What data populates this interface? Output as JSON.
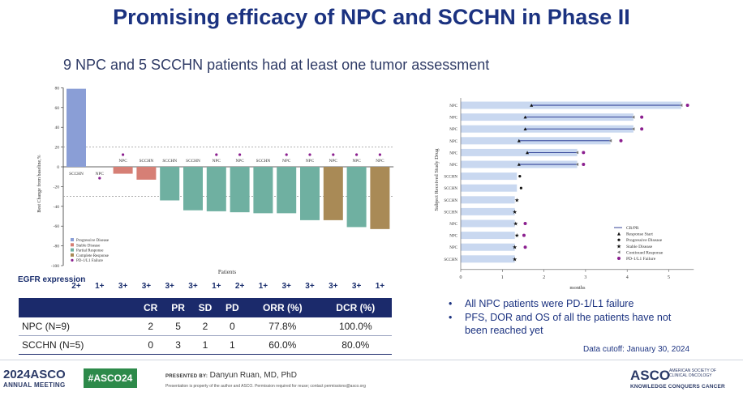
{
  "title": "Promising efficacy of NPC and SCCHN in Phase II",
  "subtitle": "9 NPC and 5 SCCHN patients had at least  one tumor assessment",
  "chart_data": [
    {
      "type": "bar",
      "title": "",
      "xlabel": "Patients",
      "ylabel": "Best Change from baseline,%",
      "ylim": [
        -100,
        80
      ],
      "yticks": [
        80,
        60,
        40,
        20,
        0,
        -20,
        -40,
        -60,
        -80,
        -100
      ],
      "reference_lines": [
        20,
        -30
      ],
      "categories": [
        "SCCHN",
        "NPC",
        "NPC",
        "SCCHN",
        "SCCHN",
        "SCCHN",
        "NPC",
        "NPC",
        "SCCHN",
        "NPC",
        "NPC",
        "NPC",
        "NPC",
        "NPC"
      ],
      "values": [
        79,
        0,
        -7,
        -13,
        -34,
        -44,
        -45,
        -46,
        -47,
        -47,
        -54,
        -54,
        -61,
        -63
      ],
      "response": [
        "Progressive Disease",
        "Stable Disease",
        "Stable Disease",
        "Stable Disease",
        "Partial Response",
        "Partial Response",
        "Partial Response",
        "Partial Response",
        "Partial Response",
        "Partial Response",
        "Partial Response",
        "Complete Response",
        "Partial Response",
        "Complete Response"
      ],
      "pd1_failure": [
        false,
        true,
        true,
        false,
        false,
        false,
        true,
        true,
        false,
        true,
        true,
        true,
        true,
        true
      ],
      "egfr_expression": [
        "2+",
        "1+",
        "3+",
        "3+",
        "3+",
        "3+",
        "1+",
        "2+",
        "1+",
        "3+",
        "3+",
        "3+",
        "3+",
        "1+"
      ],
      "legend": [
        "Progressive Disease",
        "Stable Disease",
        "Partial Response",
        "Complete Response",
        "PD-1/L1 Failure"
      ],
      "legend_position": "bottom-left",
      "colors": {
        "Progressive Disease": "#8a9ed6",
        "Stable Disease": "#d67f75",
        "Partial Response": "#6fb0a1",
        "Complete Response": "#a98a56",
        "PD-1/L1 Failure": "#8b1f8f"
      }
    },
    {
      "type": "swimmer",
      "title": "",
      "xlabel": "months",
      "ylabel": "Subject Received Study Drug",
      "xlim": [
        0,
        6
      ],
      "xticks": [
        0,
        1,
        2,
        3,
        4,
        5
      ],
      "categories": [
        "NPC",
        "NPC",
        "NPC",
        "NPC",
        "NPC",
        "NPC",
        "SCCHN",
        "SCCHN",
        "SCCHN",
        "SCCHN",
        "NPC",
        "NPC",
        "NPC",
        "SCCHN"
      ],
      "duration": [
        5.3,
        4.15,
        4.15,
        3.6,
        2.8,
        2.8,
        1.35,
        1.35,
        1.3,
        1.3,
        1.3,
        1.3,
        1.3,
        1.3
      ],
      "response_start": [
        1.7,
        1.55,
        1.55,
        1.4,
        1.6,
        1.4,
        null,
        null,
        null,
        null,
        null,
        null,
        null,
        null
      ],
      "response_end": [
        5.3,
        4.15,
        4.15,
        3.6,
        2.8,
        2.8,
        null,
        null,
        null,
        null,
        null,
        null,
        null,
        null
      ],
      "progressive_disease": [
        null,
        null,
        null,
        null,
        null,
        null,
        1.42,
        1.45,
        null,
        null,
        null,
        null,
        null,
        null
      ],
      "stable_disease": [
        null,
        null,
        null,
        null,
        null,
        null,
        null,
        null,
        1.35,
        1.3,
        1.32,
        1.35,
        1.3,
        1.3
      ],
      "continued_response": [
        5.3,
        4.15,
        4.15,
        3.6,
        2.8,
        2.8,
        null,
        null,
        null,
        null,
        null,
        null,
        null,
        null
      ],
      "pd1_failure": [
        5.45,
        4.35,
        4.35,
        3.85,
        2.95,
        2.95,
        null,
        null,
        null,
        null,
        1.55,
        1.52,
        1.55,
        null
      ],
      "legend": [
        "CR/PR",
        "Response Start",
        "Progressive Disease",
        "Stable Disease",
        "Continued Response",
        "PD-1/L1 Failure"
      ],
      "legend_position": "bottom-right",
      "colors": {
        "bar": "#c9d8f0",
        "line": "#1d2e8c",
        "pd1": "#8b1f8f"
      }
    }
  ],
  "egfr": {
    "label": "EGFR expression"
  },
  "table": {
    "headers": [
      "",
      "CR",
      "PR",
      "SD",
      "PD",
      "ORR (%)",
      "DCR (%)"
    ],
    "rows": [
      [
        "NPC  (N=9)",
        "2",
        "5",
        "2",
        "0",
        "77.8%",
        "100.0%"
      ],
      [
        "SCCHN  (N=5)",
        "0",
        "3",
        "1",
        "1",
        "60.0%",
        "80.0%"
      ]
    ]
  },
  "bullets": [
    "All NPC patients were PD-1/L1 failure",
    "PFS, DOR and OS of all the patients have not been reached yet"
  ],
  "data_cutoff": "Data cutoff: January 30, 2024",
  "footer": {
    "year": "2024",
    "asco": "ASCO",
    "annual_meeting": "ANNUAL MEETING",
    "hashtag": "#ASCO24",
    "presented_by": "PRESENTED BY:",
    "presenter": "Danyun Ruan, MD, PhD",
    "disclaimer": "Presentation is property of the author and ASCO. Permission required for reuse; contact permissions@asco.org",
    "logo": "ASCO",
    "society": "AMERICAN SOCIETY OF CLINICAL ONCOLOGY",
    "tagline": "KNOWLEDGE CONQUERS CANCER"
  }
}
